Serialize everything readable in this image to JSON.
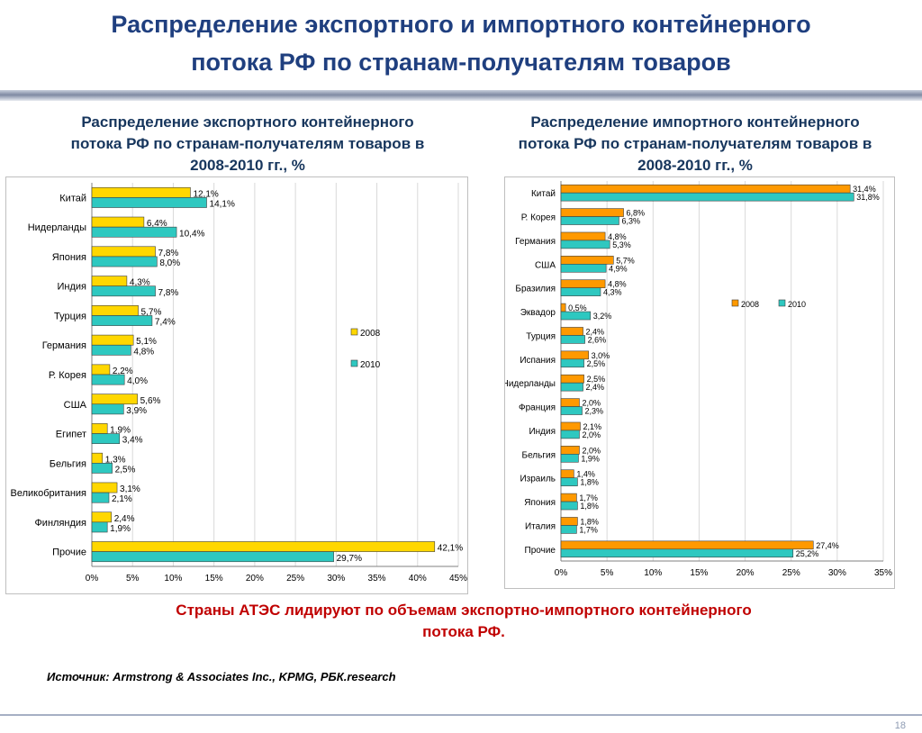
{
  "slide": {
    "title_line1": "Распределение экспортного и импортного контейнерного",
    "title_line2": "потока РФ по странам-получателям товаров",
    "conclusion_line1": "Страны АТЭС лидируют по  объемам экспортно-импортного контейнерного",
    "conclusion_line2": "потока РФ.",
    "source": "Источник: Armstrong & Associates Inc., KPMG, РБК.research",
    "page_number": "18"
  },
  "chart_data": [
    {
      "type": "bar",
      "orientation": "horizontal",
      "title_lines": [
        "Распределение экспортного контейнерного",
        "потока РФ по странам-получателям товаров в",
        "2008-2010 гг., %"
      ],
      "categories": [
        "Китай",
        "Нидерланды",
        "Япония",
        "Индия",
        "Турция",
        "Германия",
        "Р. Корея",
        "США",
        "Египет",
        "Бельгия",
        "Великобритания",
        "Финляндия",
        "Прочие"
      ],
      "series": [
        {
          "name": "2008",
          "color": "#ffd700",
          "values": [
            12.1,
            6.4,
            7.8,
            4.3,
            5.7,
            5.1,
            2.2,
            5.6,
            1.9,
            1.3,
            3.1,
            2.4,
            42.1
          ],
          "labels": [
            "12,1%",
            "6,4%",
            "7,8%",
            "4,3%",
            "5,7%",
            "5,1%",
            "2,2%",
            "5,6%",
            "1,9%",
            "1,3%",
            "3,1%",
            "2,4%",
            "42,1%"
          ]
        },
        {
          "name": "2010",
          "color": "#2ec8c0",
          "values": [
            14.1,
            10.4,
            8.0,
            7.8,
            7.4,
            4.8,
            4.0,
            3.9,
            3.4,
            2.5,
            2.1,
            1.9,
            29.7
          ],
          "labels": [
            "14,1%",
            "10,4%",
            "8,0%",
            "7,8%",
            "7,4%",
            "4,8%",
            "4,0%",
            "3,9%",
            "3,4%",
            "2,5%",
            "2,1%",
            "1,9%",
            "29,7%"
          ]
        }
      ],
      "xlim": [
        0,
        45
      ],
      "ticks": [
        0,
        5,
        10,
        15,
        20,
        25,
        30,
        35,
        40,
        45
      ],
      "tick_labels": [
        "0%",
        "5%",
        "10%",
        "15%",
        "20%",
        "25%",
        "30%",
        "35%",
        "40%",
        "45%"
      ],
      "grid": true,
      "legend": "right, stacked vertically"
    },
    {
      "type": "bar",
      "orientation": "horizontal",
      "title_lines": [
        "Распределение импортного  контейнерного",
        "потока РФ по странам-получателям товаров в",
        "2008-2010 гг., %"
      ],
      "categories": [
        "Китай",
        "Р. Корея",
        "Германия",
        "США",
        "Бразилия",
        "Эквадор",
        "Турция",
        "Испания",
        "Нидерланды",
        "Франция",
        "Индия",
        "Бельгия",
        "Израиль",
        "Япония",
        "Италия",
        "Прочие"
      ],
      "series": [
        {
          "name": "2008",
          "color": "#ff9900",
          "values": [
            31.4,
            6.8,
            4.8,
            5.7,
            4.8,
            0.5,
            2.4,
            3.0,
            2.5,
            2.0,
            2.1,
            2.0,
            1.4,
            1.7,
            1.8,
            27.4
          ],
          "labels": [
            "31,4%",
            "6,8%",
            "4,8%",
            "5,7%",
            "4,8%",
            "0,5%",
            "2,4%",
            "3,0%",
            "2,5%",
            "2,0%",
            "2,1%",
            "2,0%",
            "1,4%",
            "1,7%",
            "1,8%",
            "27,4%"
          ]
        },
        {
          "name": "2010",
          "color": "#2ec8c0",
          "values": [
            31.8,
            6.3,
            5.3,
            4.9,
            4.3,
            3.2,
            2.6,
            2.5,
            2.4,
            2.3,
            2.0,
            1.9,
            1.8,
            1.8,
            1.7,
            25.2
          ],
          "labels": [
            "31,8%",
            "6,3%",
            "5,3%",
            "4,9%",
            "4,3%",
            "3,2%",
            "2,6%",
            "2,5%",
            "2,4%",
            "2,3%",
            "2,0%",
            "1,9%",
            "1,8%",
            "1,8%",
            "1,7%",
            "25,2%"
          ]
        }
      ],
      "xlim": [
        0,
        35
      ],
      "ticks": [
        0,
        5,
        10,
        15,
        20,
        25,
        30,
        35
      ],
      "tick_labels": [
        "0%",
        "5%",
        "10%",
        "15%",
        "20%",
        "25%",
        "30%",
        "35%"
      ],
      "grid": true,
      "legend": "right, side by side"
    }
  ]
}
